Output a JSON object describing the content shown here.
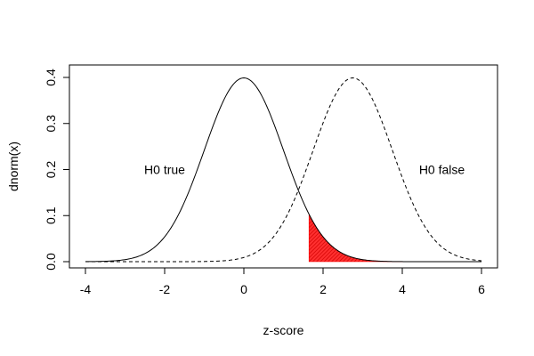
{
  "chart_data": {
    "type": "line",
    "title": "",
    "xlabel": "z-score",
    "ylabel": "dnorm(x)",
    "xlim": [
      -4,
      6
    ],
    "ylim": [
      0,
      0.4
    ],
    "xticks": [
      -4,
      -2,
      0,
      2,
      4,
      6
    ],
    "yticks": [
      0.0,
      0.1,
      0.2,
      0.3,
      0.4
    ],
    "xtick_labels": [
      "-4",
      "-2",
      "0",
      "2",
      "4",
      "6"
    ],
    "ytick_labels": [
      "0.0",
      "0.1",
      "0.2",
      "0.3",
      "0.4"
    ],
    "grid": false,
    "series": [
      {
        "mean": 0,
        "sd": 1,
        "line_style": "solid",
        "color": "#000000"
      },
      {
        "mean": 2.75,
        "sd": 1,
        "line_style": "dashed",
        "color": "#000000"
      }
    ],
    "shaded_region": {
      "from_x": 1.645,
      "to_x": 6,
      "under_series": 0,
      "color": "#ff0000",
      "style": "hatched"
    },
    "annotations": [
      {
        "text": "H0 true",
        "x": -2,
        "y": 0.2
      },
      {
        "text": "H0 false",
        "x": 5,
        "y": 0.2
      }
    ]
  }
}
